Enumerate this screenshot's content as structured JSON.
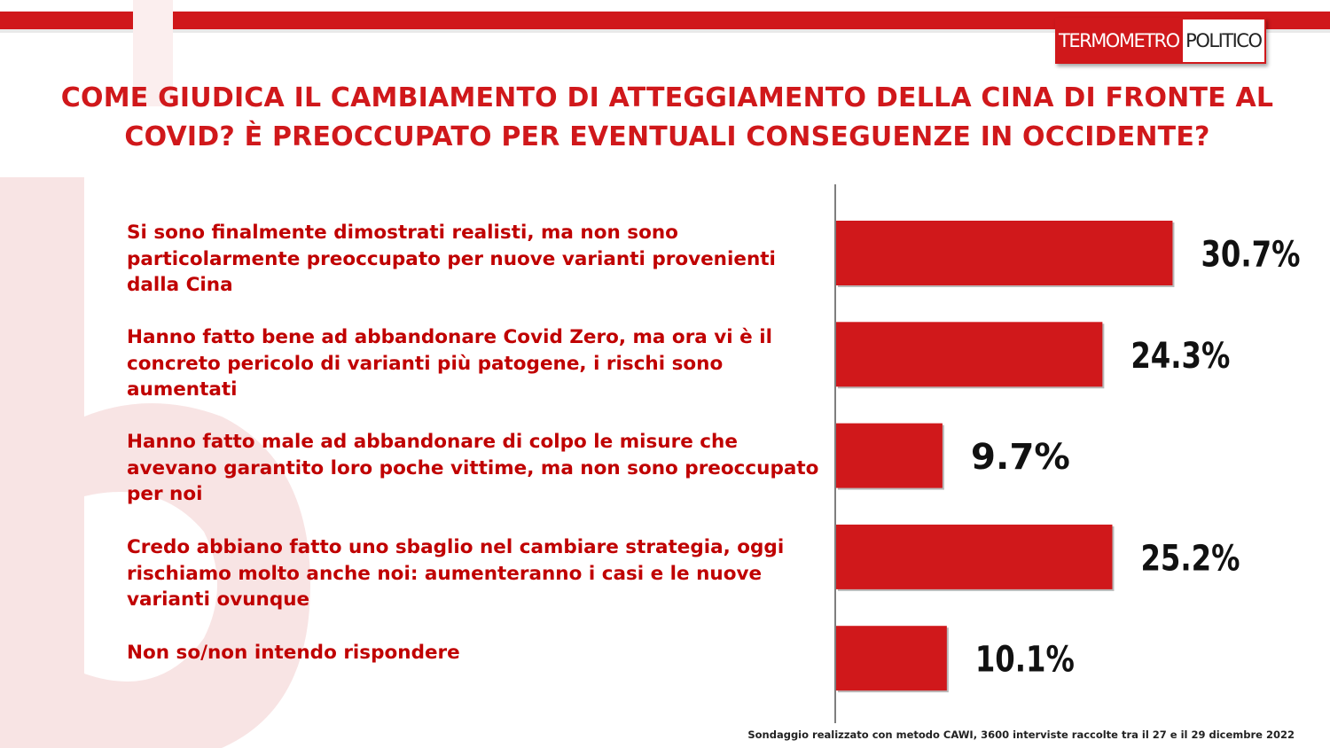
{
  "logo": {
    "part_red": "TERMOMETRO",
    "part_white": "POLITICO"
  },
  "title": "COME GIUDICA IL CAMBIAMENTO DI ATTEGGIAMENTO DELLA CINA DI FRONTE AL COVID? È PREOCCUPATO PER EVENTUALI CONSEGUENZE IN OCCIDENTE?",
  "footnote": "Sondaggio realizzato con metodo CAWI, 3600 interviste raccolte tra il 27 e il 29 dicembre 2022",
  "colors": {
    "accent": "#d0181b",
    "bar": "#d0181b",
    "label": "#c00000",
    "value": "#111111"
  },
  "chart_data": {
    "type": "bar",
    "orientation": "horizontal",
    "categories": [
      "Si sono finalmente dimostrati realisti, ma non sono particolarmente preoccupato per nuove varianti provenienti dalla Cina",
      "Hanno fatto bene ad abbandonare Covid Zero, ma ora vi è il concreto pericolo di varianti più patogene, i rischi sono aumentati",
      "Hanno fatto male ad abbandonare di colpo le misure che avevano garantito loro poche vittime, ma non sono preoccupato per noi",
      "Credo abbiano fatto uno sbaglio nel cambiare strategia, oggi rischiamo molto anche noi: aumenteranno i casi e le nuove varianti ovunque",
      "Non so/non intendo rispondere"
    ],
    "values": [
      30.7,
      24.3,
      9.7,
      25.2,
      10.1
    ],
    "value_labels": [
      "30.7%",
      "24.3%",
      "9.7%",
      "25.2%",
      "10.1%"
    ],
    "unit": "%",
    "xlim": [
      0,
      40
    ],
    "grid": false,
    "legend": "none"
  }
}
